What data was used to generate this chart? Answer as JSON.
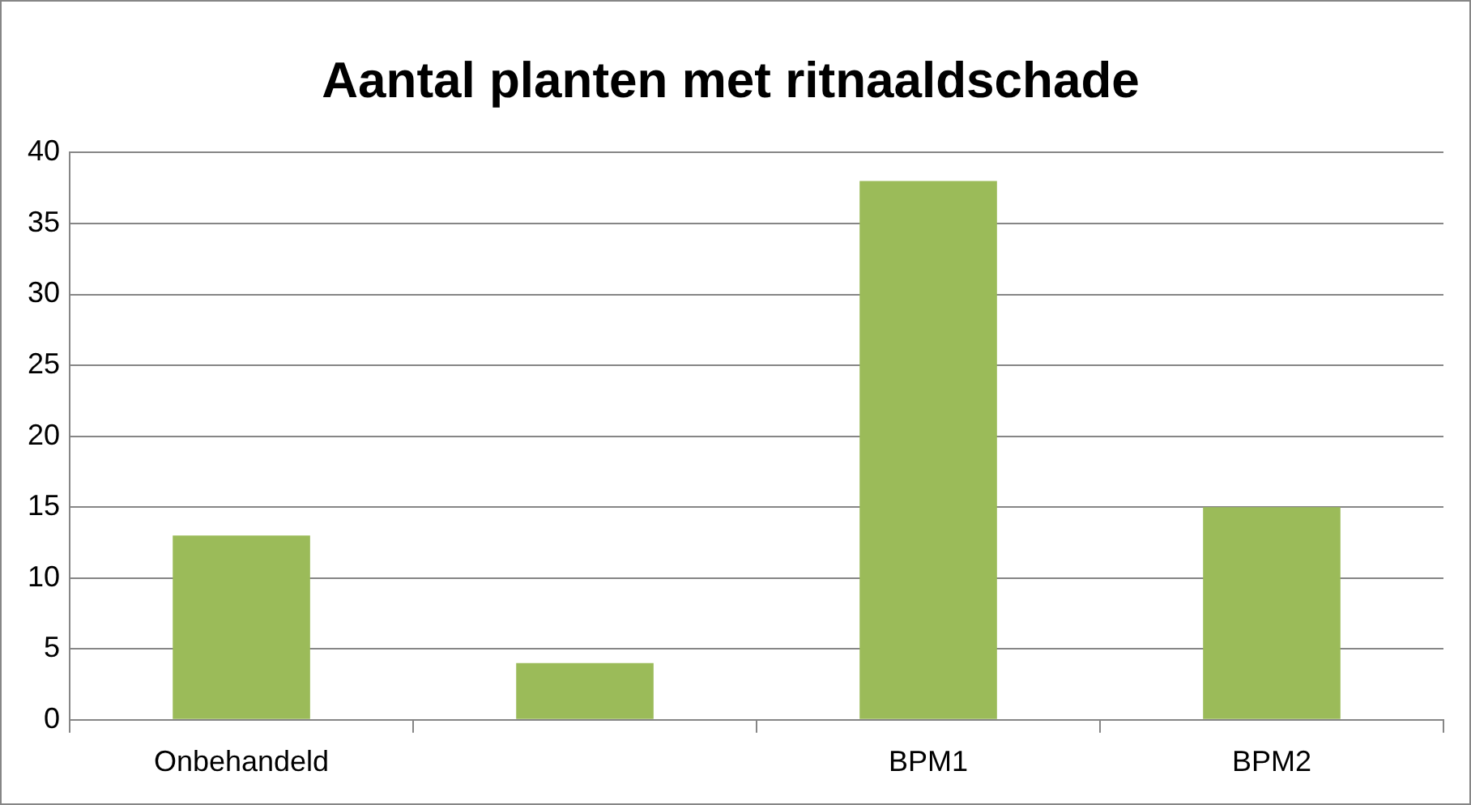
{
  "chart_data": {
    "type": "bar",
    "title": "Aantal planten met ritnaaldschade",
    "categories": [
      "Onbehandeld",
      null,
      "BPM1",
      "BPM2"
    ],
    "values": [
      13,
      4,
      38,
      15
    ],
    "color": "#9bbb59",
    "ylim": [
      0,
      40
    ],
    "yticks": [
      0,
      5,
      10,
      15,
      20,
      25,
      30,
      35,
      40
    ],
    "grid": "y",
    "legend": false
  }
}
